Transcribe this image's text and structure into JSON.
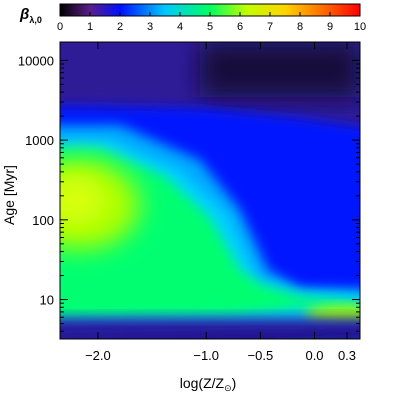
{
  "chart_data": {
    "type": "heatmap",
    "title": "",
    "colorbar": {
      "label_main": "β",
      "label_sub": "λ,0",
      "ticks": [
        0,
        1,
        2,
        3,
        4,
        5,
        6,
        7,
        8,
        9,
        10
      ],
      "range": [
        0,
        10
      ],
      "colormap": [
        "#000000",
        "#5a1f8a",
        "#0010ff",
        "#00c8ff",
        "#00ff60",
        "#c0ff00",
        "#ffd400",
        "#ff6a00",
        "#ff0000"
      ],
      "placement": "top"
    },
    "xaxis": {
      "label": "log(Z/Z",
      "label_sub": "⊙",
      "label_close": ")",
      "range": [
        -2.35,
        0.42
      ],
      "ticks": [
        -2.0,
        -1.0,
        -0.5,
        0.0,
        0.3
      ],
      "tick_labels": [
        "−2.0",
        "−1.0",
        "−0.5",
        "0.0",
        "0.3"
      ]
    },
    "yaxis": {
      "label": "Age [Myr]",
      "scale": "log",
      "range": [
        3.2,
        17000
      ],
      "ticks": [
        10,
        100,
        1000,
        10000
      ],
      "tick_labels": [
        "10",
        "100",
        "1000",
        "10000"
      ]
    }
  }
}
